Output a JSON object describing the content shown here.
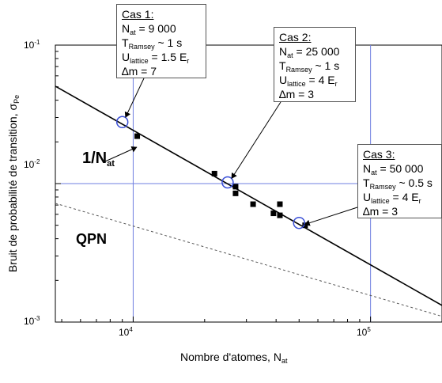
{
  "chart_data": {
    "type": "scatter",
    "xlabel": "Nombre d'atomes, N",
    "xlabel_sub": "at",
    "ylabel": "Bruit de probabilité de transition, σ",
    "ylabel_sub": "Pe",
    "xscale": "log",
    "yscale": "log",
    "xlim": [
      4700,
      200000
    ],
    "ylim": [
      0.001,
      0.1
    ],
    "x_ticks": [
      {
        "value": 10000,
        "base": "10",
        "exp": "4"
      },
      {
        "value": 100000,
        "base": "10",
        "exp": "5"
      }
    ],
    "y_ticks": [
      {
        "value": 0.001,
        "base": "10",
        "exp": "-3"
      },
      {
        "value": 0.01,
        "base": "10",
        "exp": "-2"
      },
      {
        "value": 0.1,
        "base": "10",
        "exp": "-1"
      }
    ],
    "series": [
      {
        "kind": "points",
        "x": [
          10400,
          22000,
          27000,
          27000,
          32000,
          39000,
          41500,
          41500,
          53000
        ],
        "y": [
          0.022,
          0.0118,
          0.0095,
          0.0085,
          0.0071,
          0.0061,
          0.0071,
          0.0059,
          0.005
        ]
      },
      {
        "kind": "line",
        "style": "solid",
        "x": [
          4700,
          200000
        ],
        "y": [
          0.0505,
          0.00132
        ]
      },
      {
        "kind": "line",
        "style": "dashed",
        "x": [
          4700,
          200000
        ],
        "y": [
          0.0072,
          0.0011
        ]
      },
      {
        "kind": "circles",
        "x": [
          9000,
          25000,
          50000
        ],
        "y": [
          0.0278,
          0.0102,
          0.0052
        ]
      }
    ],
    "reference_lines": {
      "vertical": [
        10000,
        100000
      ],
      "horizontal": [
        0.01
      ]
    },
    "annotations": {
      "one_over_n": {
        "text": "1/N",
        "sub": "at"
      },
      "qpn": "QPN",
      "cases": [
        {
          "title": "Cas 1:",
          "lines": [
            {
              "sym": "N",
              "sub": "at",
              "rest": " = 9 000"
            },
            {
              "sym": "T",
              "sub": "Ramsey",
              "rest": " ~ 1 s"
            },
            {
              "sym": "U",
              "sub": "lattice",
              "rest": " = 1.5 E",
              "end_sub": "r"
            },
            {
              "sym": "∆m",
              "sub": "",
              "rest": " = 7"
            }
          ]
        },
        {
          "title": "Cas 2:",
          "lines": [
            {
              "sym": "N",
              "sub": "at",
              "rest": " = 25 000"
            },
            {
              "sym": "T",
              "sub": "Ramsey",
              "rest": " ~ 1 s"
            },
            {
              "sym": "U",
              "sub": "lattice",
              "rest": " = 4 E",
              "end_sub": "r"
            },
            {
              "sym": "∆m",
              "sub": "",
              "rest": " = 3"
            }
          ]
        },
        {
          "title": "Cas 3:",
          "lines": [
            {
              "sym": "N",
              "sub": "at",
              "rest": " = 50 000"
            },
            {
              "sym": "T",
              "sub": "Ramsey",
              "rest": " ~ 0.5 s"
            },
            {
              "sym": "U",
              "sub": "lattice",
              "rest": " = 4 E",
              "end_sub": "r"
            },
            {
              "sym": "∆m",
              "sub": "",
              "rest": " = 3"
            }
          ]
        }
      ]
    },
    "colors": {
      "markers": "#000000",
      "fit": "#000000",
      "qpn": "#555555",
      "reference": "#6f7fe0",
      "circles": "#3a4fd6",
      "arrows": "#000000"
    }
  }
}
